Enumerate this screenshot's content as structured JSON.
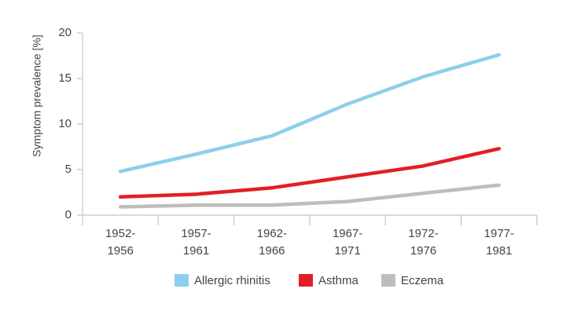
{
  "chart_data": {
    "type": "line",
    "y_label": "Symptom prevalence [%]",
    "categories": [
      "1952-1956",
      "1957-1961",
      "1962-1966",
      "1967-1971",
      "1972-1976",
      "1977-1981"
    ],
    "series": [
      {
        "name": "Allergic rhinitis",
        "color": "#8ccfec",
        "values": [
          4.8,
          6.7,
          8.7,
          12.2,
          15.2,
          17.6
        ]
      },
      {
        "name": "Asthma",
        "color": "#e31e26",
        "values": [
          2.0,
          2.3,
          3.0,
          4.2,
          5.4,
          7.3
        ]
      },
      {
        "name": "Eczema",
        "color": "#bdbdbd",
        "values": [
          0.9,
          1.1,
          1.1,
          1.5,
          2.4,
          3.3
        ]
      }
    ],
    "ylim": [
      0,
      20
    ],
    "yticks": [
      0,
      5,
      10,
      15,
      20
    ],
    "grid": false
  }
}
